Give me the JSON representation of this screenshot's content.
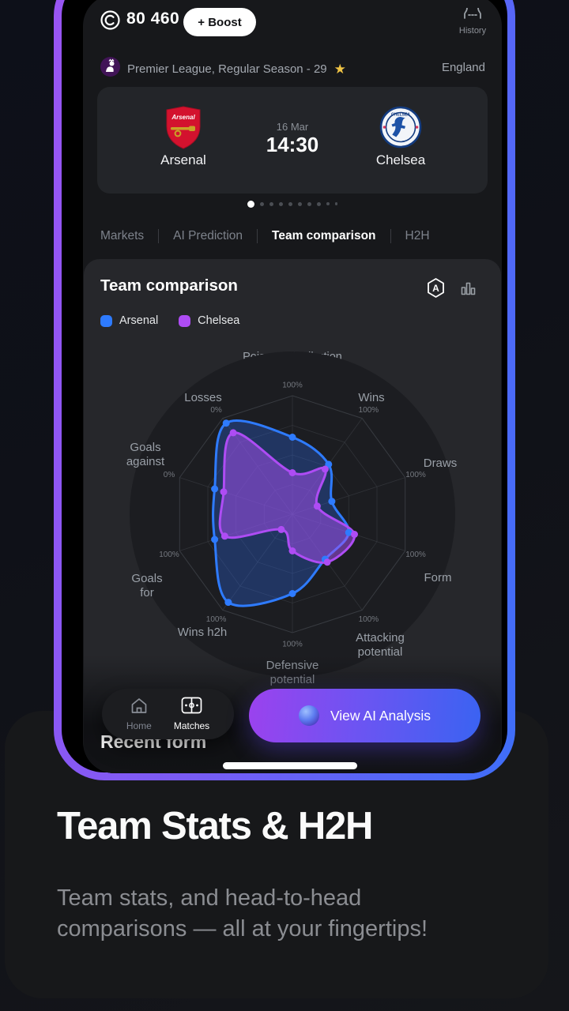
{
  "status_bar": {
    "balance": "80 460",
    "boost_label": "+ Boost",
    "history_label": "History"
  },
  "league_row": {
    "label": "Premier League,  Regular Season - 29",
    "country": "England"
  },
  "match_card": {
    "home_team": "Arsenal",
    "away_team": "Chelsea",
    "date": "16 Mar",
    "time": "14:30"
  },
  "carousel": {
    "dot_count": 10,
    "active_index": 0
  },
  "tabs": [
    {
      "label": "Markets",
      "active": false
    },
    {
      "label": "AI Prediction",
      "active": false
    },
    {
      "label": "Team comparison",
      "active": true
    },
    {
      "label": "H2H",
      "active": false
    }
  ],
  "panel": {
    "title": "Team comparison"
  },
  "chart_data": {
    "type": "radar",
    "title": "Poisson distribution",
    "note": "values are plotted radius in percent of full radar radius; outer-ring tick label shown per axis (Losses and Goals against axes are inverted: 0% at outer edge)",
    "axes": [
      {
        "label": "Poisson distribution",
        "tick": "100%"
      },
      {
        "label": "Wins",
        "tick": "100%"
      },
      {
        "label": "Draws",
        "tick": "100%"
      },
      {
        "label": "Form",
        "tick": "100%"
      },
      {
        "label": "Attacking potential",
        "tick": "100%"
      },
      {
        "label": "Defensive potential",
        "tick": "100%"
      },
      {
        "label": "Wins h2h",
        "tick": "100%"
      },
      {
        "label": "Goals for",
        "tick": "100%"
      },
      {
        "label": "Goals against",
        "tick": "0%"
      },
      {
        "label": "Losses",
        "tick": "0%"
      }
    ],
    "series": [
      {
        "name": "Arsenal",
        "color": "#2e7bff",
        "fill": "rgba(46,110,245,0.30)",
        "values": [
          65,
          52,
          35,
          50,
          47,
          67,
          92,
          69,
          69,
          95
        ]
      },
      {
        "name": "Chelsea",
        "color": "#ae4cf4",
        "fill": "rgba(164,80,240,0.52)",
        "values": [
          35,
          47,
          22,
          55,
          50,
          31,
          16,
          60,
          61,
          85
        ]
      }
    ],
    "legend_position": "top-left",
    "grid": true
  },
  "bottom_nav": {
    "items": [
      {
        "label": "Home",
        "active": false
      },
      {
        "label": "Matches",
        "active": true
      }
    ],
    "cta_label": "View AI Analysis"
  },
  "section_heading": "Recent form",
  "marketing": {
    "title": "Team Stats & H2H",
    "subtitle_lines": [
      "Team stats, and head-to-head",
      "comparisons — all at your fingertips!"
    ]
  }
}
